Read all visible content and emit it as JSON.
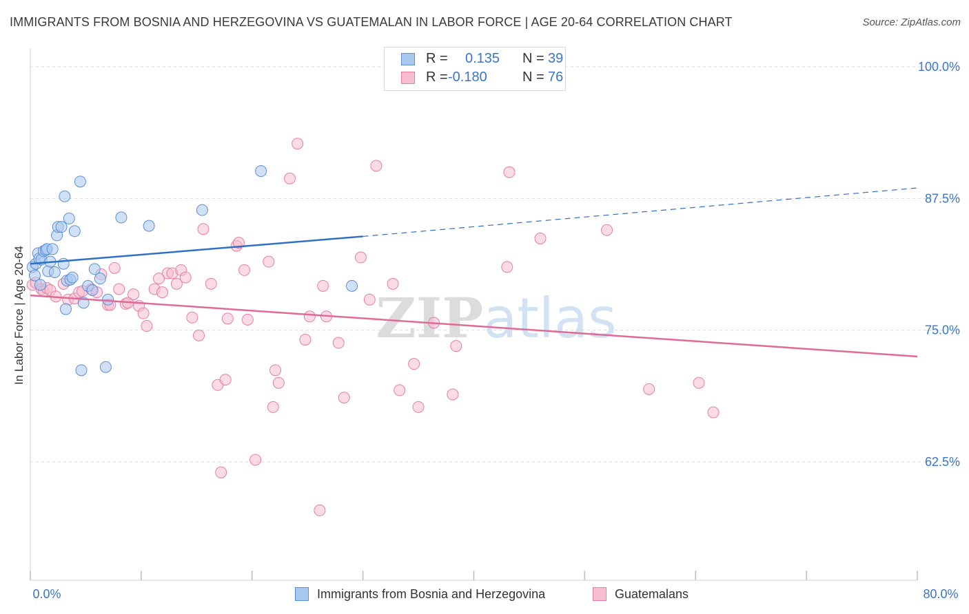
{
  "title": "IMMIGRANTS FROM BOSNIA AND HERZEGOVINA VS GUATEMALAN IN LABOR FORCE | AGE 20-64 CORRELATION CHART",
  "source": "Source: ZipAtlas.com",
  "watermark": "ZIPatlas",
  "colors": {
    "blue_fill": "#a9c8f0",
    "blue_stroke": "#5b8fd6",
    "blue_line": "#2f6fc4",
    "pink_fill": "#f7bdd0",
    "pink_stroke": "#e57ea3",
    "pink_line": "#e06a96",
    "tick_label": "#3a76c7",
    "grid": "#d9d9d9"
  },
  "legend": {
    "r_label": "R =",
    "n_label": "N =",
    "series1": {
      "r": "0.135",
      "n": "39"
    },
    "series2": {
      "r": "-0.180",
      "n": "76"
    }
  },
  "chart_data": {
    "type": "scatter",
    "title": "IMMIGRANTS FROM BOSNIA AND HERZEGOVINA VS GUATEMALAN IN LABOR FORCE | AGE 20-64 CORRELATION CHART",
    "xlabel": "",
    "ylabel": "In Labor Force | Age 20-64",
    "xlim": [
      0,
      80
    ],
    "ylim": [
      50,
      102
    ],
    "x_tick_labels": [
      "0.0%",
      "80.0%"
    ],
    "y_ticks": [
      62.5,
      75.0,
      87.5,
      100.0
    ],
    "y_tick_labels": [
      "62.5%",
      "75.0%",
      "87.5%",
      "100.0%"
    ],
    "grid": true,
    "legend_position": "bottom",
    "series": [
      {
        "name": "Immigrants from Bosnia and Herzegovina",
        "r": 0.135,
        "n": 39,
        "trend": {
          "x0": 0,
          "y0": 81.3,
          "x1": 30,
          "y1": 83.9,
          "dashed_to_x": 80,
          "dashed_to_y": 88.5
        },
        "points": [
          [
            0.2,
            81.0
          ],
          [
            0.4,
            80.2
          ],
          [
            0.5,
            81.3
          ],
          [
            0.7,
            82.3
          ],
          [
            0.8,
            81.8
          ],
          [
            0.9,
            79.3
          ],
          [
            1.0,
            81.7
          ],
          [
            1.2,
            82.5
          ],
          [
            1.4,
            82.6
          ],
          [
            1.5,
            82.7
          ],
          [
            1.6,
            80.6
          ],
          [
            1.8,
            81.5
          ],
          [
            2.0,
            82.7
          ],
          [
            2.2,
            80.5
          ],
          [
            2.4,
            84.0
          ],
          [
            2.5,
            84.8
          ],
          [
            2.8,
            84.8
          ],
          [
            3.0,
            81.3
          ],
          [
            3.1,
            87.7
          ],
          [
            3.2,
            77.0
          ],
          [
            3.3,
            79.7
          ],
          [
            3.5,
            85.6
          ],
          [
            3.6,
            79.8
          ],
          [
            3.8,
            80.0
          ],
          [
            4.0,
            84.4
          ],
          [
            4.5,
            89.1
          ],
          [
            4.6,
            71.2
          ],
          [
            4.8,
            77.6
          ],
          [
            5.2,
            79.2
          ],
          [
            5.6,
            78.8
          ],
          [
            5.8,
            80.8
          ],
          [
            6.3,
            79.9
          ],
          [
            6.8,
            71.5
          ],
          [
            7.0,
            77.9
          ],
          [
            8.2,
            85.7
          ],
          [
            10.7,
            84.9
          ],
          [
            15.5,
            86.4
          ],
          [
            20.8,
            90.1
          ],
          [
            29.0,
            79.2
          ]
        ]
      },
      {
        "name": "Guatemalans",
        "r": -0.18,
        "n": 76,
        "trend": {
          "x0": 0,
          "y0": 78.3,
          "x1": 80,
          "y1": 72.5
        },
        "points": [
          [
            0.2,
            79.3
          ],
          [
            0.5,
            79.5
          ],
          [
            1.0,
            78.9
          ],
          [
            1.2,
            78.7
          ],
          [
            1.5,
            79.0
          ],
          [
            1.8,
            78.8
          ],
          [
            2.3,
            78.2
          ],
          [
            3.0,
            79.4
          ],
          [
            3.4,
            77.9
          ],
          [
            4.0,
            78.0
          ],
          [
            4.4,
            78.6
          ],
          [
            4.7,
            78.7
          ],
          [
            5.5,
            78.9
          ],
          [
            6.0,
            78.6
          ],
          [
            6.4,
            80.3
          ],
          [
            7.0,
            77.4
          ],
          [
            7.2,
            77.4
          ],
          [
            7.6,
            80.9
          ],
          [
            8.0,
            78.9
          ],
          [
            8.6,
            77.5
          ],
          [
            8.8,
            77.6
          ],
          [
            9.3,
            78.4
          ],
          [
            9.8,
            77.3
          ],
          [
            10.2,
            76.6
          ],
          [
            10.5,
            75.4
          ],
          [
            11.2,
            78.9
          ],
          [
            11.6,
            79.9
          ],
          [
            11.9,
            78.6
          ],
          [
            12.4,
            80.4
          ],
          [
            12.8,
            80.4
          ],
          [
            13.2,
            79.4
          ],
          [
            13.6,
            80.7
          ],
          [
            14.0,
            80.0
          ],
          [
            14.6,
            76.2
          ],
          [
            15.2,
            74.5
          ],
          [
            15.6,
            84.6
          ],
          [
            16.3,
            79.4
          ],
          [
            16.9,
            69.8
          ],
          [
            17.2,
            61.5
          ],
          [
            17.6,
            70.3
          ],
          [
            17.8,
            76.1
          ],
          [
            18.6,
            83.0
          ],
          [
            18.8,
            83.3
          ],
          [
            19.3,
            80.7
          ],
          [
            19.6,
            76.0
          ],
          [
            20.3,
            62.7
          ],
          [
            21.5,
            81.5
          ],
          [
            21.9,
            67.7
          ],
          [
            22.1,
            71.2
          ],
          [
            22.4,
            70.0
          ],
          [
            23.4,
            89.4
          ],
          [
            24.1,
            92.7
          ],
          [
            24.8,
            74.1
          ],
          [
            25.2,
            76.3
          ],
          [
            26.1,
            57.9
          ],
          [
            26.4,
            79.2
          ],
          [
            26.7,
            76.3
          ],
          [
            27.8,
            73.8
          ],
          [
            28.3,
            68.6
          ],
          [
            29.8,
            81.9
          ],
          [
            30.6,
            77.9
          ],
          [
            31.2,
            90.6
          ],
          [
            32.7,
            79.4
          ],
          [
            33.3,
            69.3
          ],
          [
            34.6,
            71.8
          ],
          [
            35.0,
            67.7
          ],
          [
            36.4,
            75.7
          ],
          [
            38.1,
            68.9
          ],
          [
            38.4,
            73.5
          ],
          [
            43.0,
            81.0
          ],
          [
            43.2,
            90.0
          ],
          [
            46.0,
            83.7
          ],
          [
            52.0,
            84.5
          ],
          [
            55.8,
            69.4
          ],
          [
            60.3,
            70.0
          ],
          [
            61.6,
            67.2
          ]
        ]
      }
    ]
  },
  "legend_bottom": {
    "series1": "Immigrants from Bosnia and Herzegovina",
    "series2": "Guatemalans"
  }
}
